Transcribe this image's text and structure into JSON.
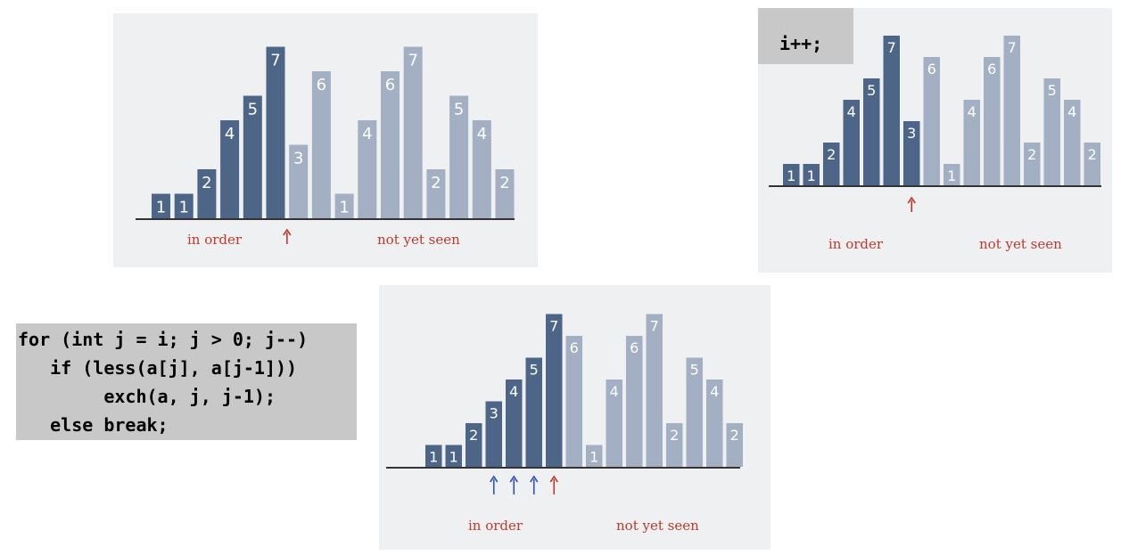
{
  "panels": [
    {
      "id": "top-left",
      "bars": [
        {
          "label": "1",
          "value": 1,
          "state": "done"
        },
        {
          "label": "1",
          "value": 1,
          "state": "done"
        },
        {
          "label": "2",
          "value": 2,
          "state": "done"
        },
        {
          "label": "4",
          "value": 4,
          "state": "done"
        },
        {
          "label": "5",
          "value": 5,
          "state": "done"
        },
        {
          "label": "7",
          "value": 7,
          "state": "done"
        },
        {
          "label": "3",
          "value": 3,
          "state": "pending"
        },
        {
          "label": "6",
          "value": 6,
          "state": "pending"
        },
        {
          "label": "1",
          "value": 1,
          "state": "pending"
        },
        {
          "label": "4",
          "value": 4,
          "state": "pending"
        },
        {
          "label": "6",
          "value": 6,
          "state": "pending"
        },
        {
          "label": "7",
          "value": 7,
          "state": "pending"
        },
        {
          "label": "2",
          "value": 2,
          "state": "pending"
        },
        {
          "label": "5",
          "value": 5,
          "state": "pending"
        },
        {
          "label": "4",
          "value": 4,
          "state": "pending"
        },
        {
          "label": "2",
          "value": 2,
          "state": "pending"
        }
      ],
      "arrows": [
        {
          "after_index": 5,
          "color": "red"
        }
      ],
      "labels": {
        "in_order": "in order",
        "not_yet_seen": "not yet seen"
      }
    },
    {
      "id": "top-right",
      "code": "i++;",
      "bars": [
        {
          "label": "1",
          "value": 1,
          "state": "done"
        },
        {
          "label": "1",
          "value": 1,
          "state": "done"
        },
        {
          "label": "2",
          "value": 2,
          "state": "done"
        },
        {
          "label": "4",
          "value": 4,
          "state": "done"
        },
        {
          "label": "5",
          "value": 5,
          "state": "done"
        },
        {
          "label": "7",
          "value": 7,
          "state": "done"
        },
        {
          "label": "3",
          "value": 3,
          "state": "done"
        },
        {
          "label": "6",
          "value": 6,
          "state": "pending"
        },
        {
          "label": "1",
          "value": 1,
          "state": "pending"
        },
        {
          "label": "4",
          "value": 4,
          "state": "pending"
        },
        {
          "label": "6",
          "value": 6,
          "state": "pending"
        },
        {
          "label": "7",
          "value": 7,
          "state": "pending"
        },
        {
          "label": "2",
          "value": 2,
          "state": "pending"
        },
        {
          "label": "5",
          "value": 5,
          "state": "pending"
        },
        {
          "label": "4",
          "value": 4,
          "state": "pending"
        },
        {
          "label": "2",
          "value": 2,
          "state": "pending"
        }
      ],
      "arrows": [
        {
          "at_index": 6,
          "color": "red"
        }
      ],
      "labels": {
        "in_order": "in order",
        "not_yet_seen": "not yet seen"
      }
    },
    {
      "id": "bottom",
      "bars": [
        {
          "label": "1",
          "value": 1,
          "state": "done"
        },
        {
          "label": "1",
          "value": 1,
          "state": "done"
        },
        {
          "label": "2",
          "value": 2,
          "state": "done"
        },
        {
          "label": "3",
          "value": 3,
          "state": "done"
        },
        {
          "label": "4",
          "value": 4,
          "state": "done"
        },
        {
          "label": "5",
          "value": 5,
          "state": "done"
        },
        {
          "label": "7",
          "value": 7,
          "state": "done"
        },
        {
          "label": "6",
          "value": 6,
          "state": "pending"
        },
        {
          "label": "1",
          "value": 1,
          "state": "pending"
        },
        {
          "label": "4",
          "value": 4,
          "state": "pending"
        },
        {
          "label": "6",
          "value": 6,
          "state": "pending"
        },
        {
          "label": "7",
          "value": 7,
          "state": "pending"
        },
        {
          "label": "2",
          "value": 2,
          "state": "pending"
        },
        {
          "label": "5",
          "value": 5,
          "state": "pending"
        },
        {
          "label": "4",
          "value": 4,
          "state": "pending"
        },
        {
          "label": "2",
          "value": 2,
          "state": "pending"
        }
      ],
      "arrows": [
        {
          "at_index": 3,
          "color": "blue"
        },
        {
          "at_index": 4,
          "color": "blue"
        },
        {
          "at_index": 5,
          "color": "blue"
        },
        {
          "at_index": 6,
          "color": "red"
        }
      ],
      "labels": {
        "in_order": "in order",
        "not_yet_seen": "not yet seen"
      }
    }
  ],
  "code_block": {
    "lines": [
      "for (int j = i; j > 0; j--)",
      "   if (less(a[j], a[j-1]))",
      "        exch(a, j, j-1);",
      "   else break;"
    ]
  },
  "colors": {
    "done": "#4d6587",
    "pending": "#a3b0c4",
    "red_arrow": "#c0392b",
    "blue_arrow": "#2a52be",
    "label": "#c0392b"
  }
}
